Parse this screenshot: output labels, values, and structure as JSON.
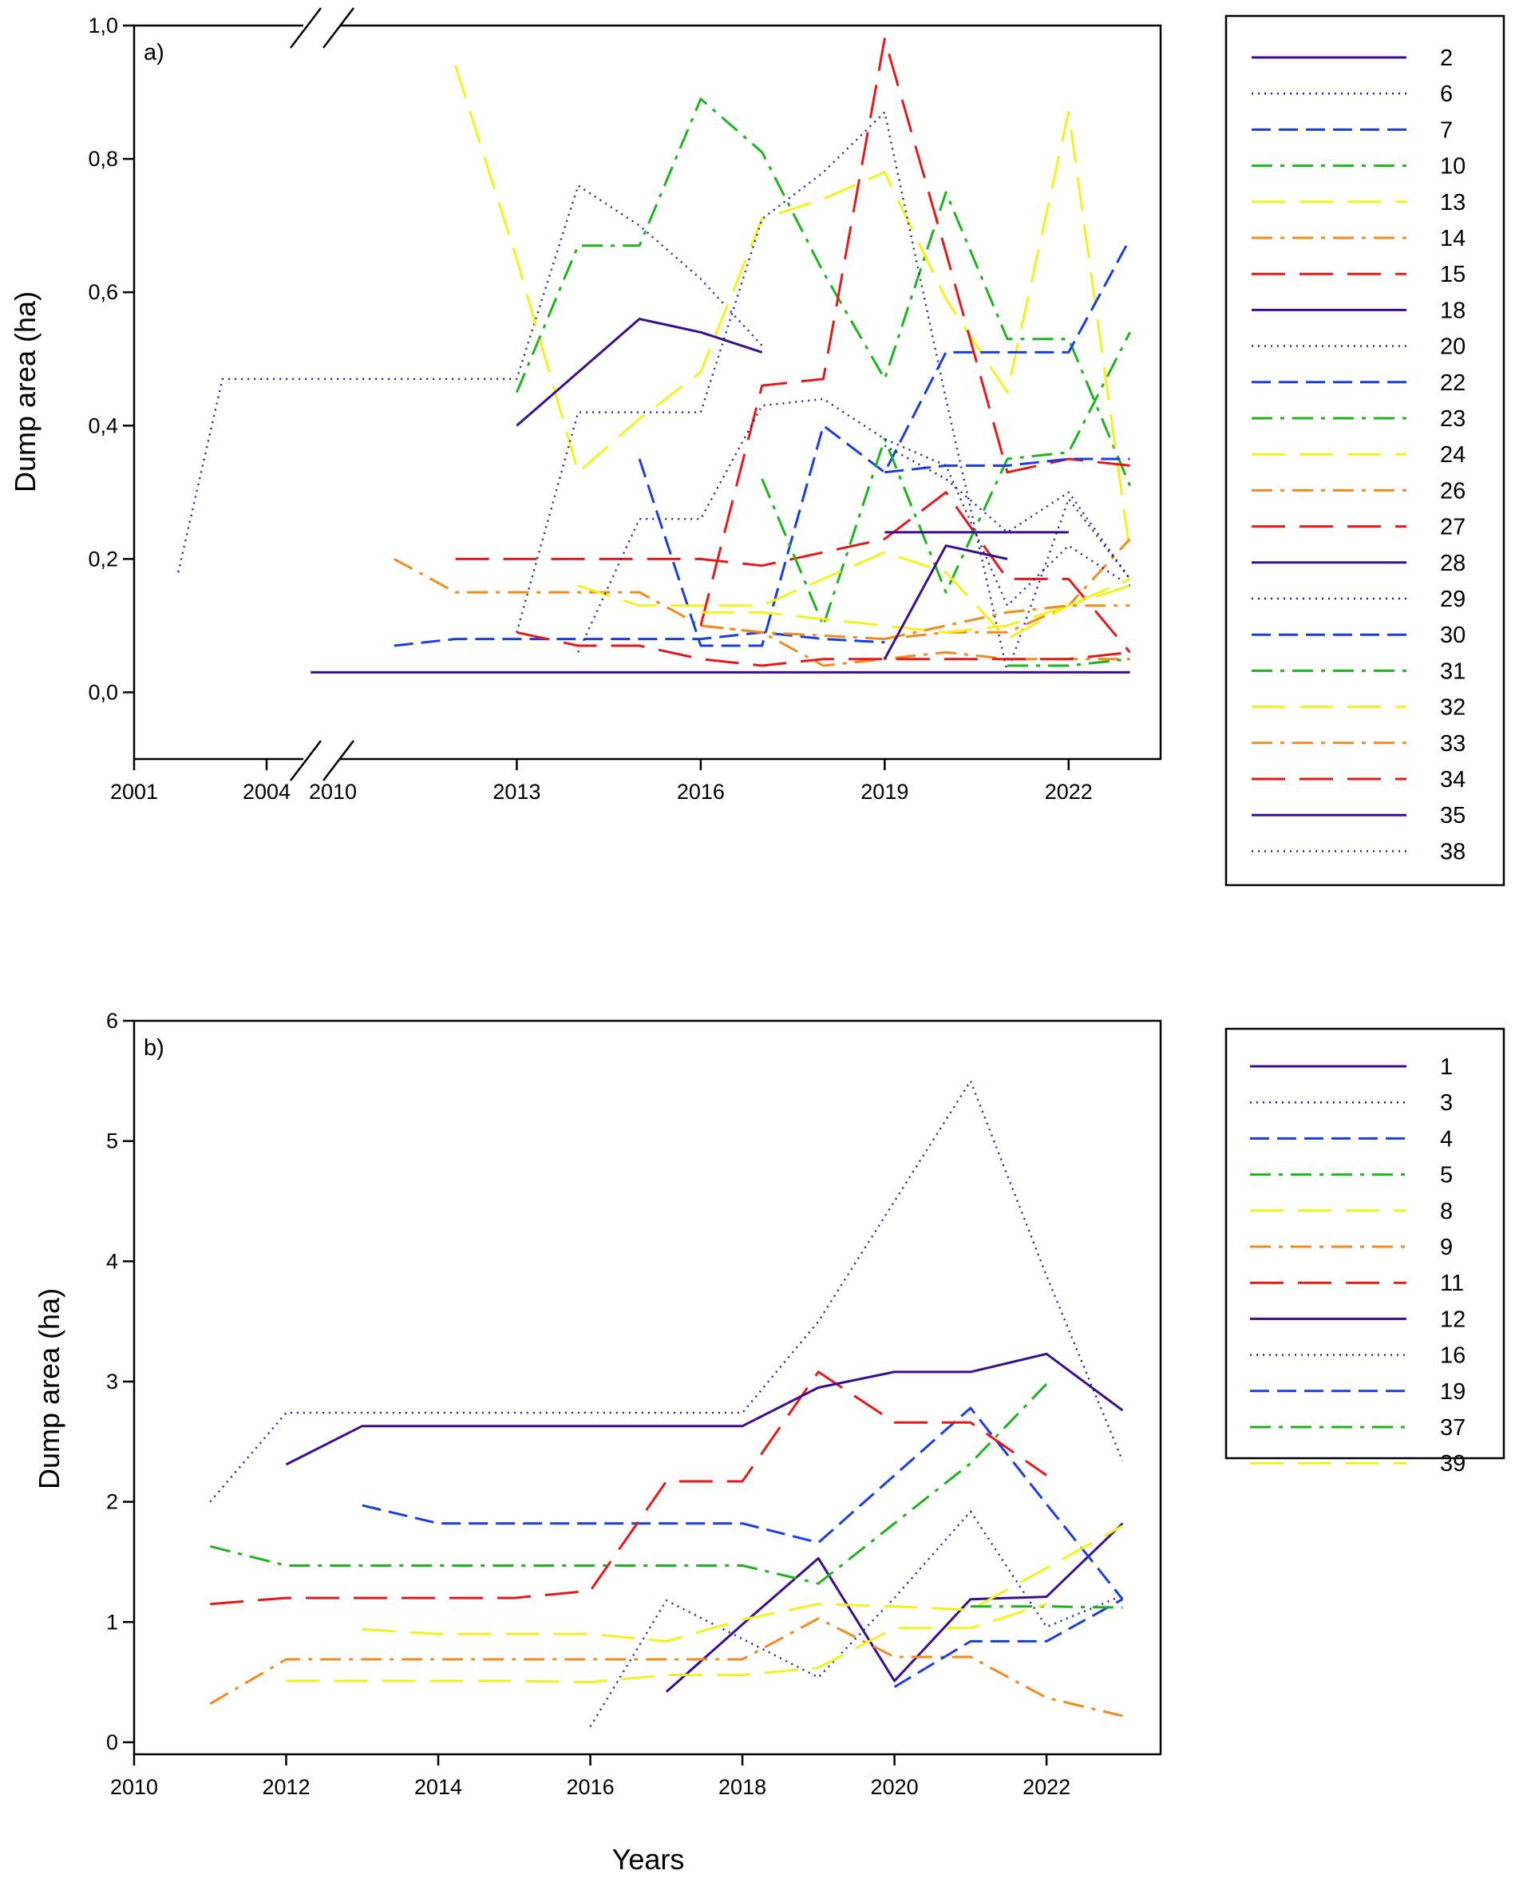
{
  "chart_data": [
    {
      "type": "line",
      "panel_label": "a)",
      "xlabel": "",
      "ylabel": "Dump area (ha)",
      "xlim": [
        2001,
        2023.5
      ],
      "x_axis_break": [
        2005.5,
        2010
      ],
      "xticks": [
        2001,
        2004,
        2010,
        2013,
        2016,
        2019,
        2022
      ],
      "ylim": [
        -0.1,
        1.0
      ],
      "yticks": [
        0.0,
        0.2,
        0.4,
        0.6,
        0.8,
        1.0
      ],
      "ytick_labels": [
        "0,0",
        "0,2",
        "0,4",
        "0,6",
        "0,8",
        "1,0"
      ],
      "legend": "right",
      "series": [
        {
          "name": "2",
          "color": "#3b0f8c",
          "dash": "solid",
          "x": [
            2005,
            2023
          ],
          "y": [
            0.03,
            0.03
          ]
        },
        {
          "name": "6",
          "color": "#1f1f8f",
          "dash": "dot",
          "x": [
            2002,
            2003,
            2004,
            2005,
            2010,
            2011,
            2012,
            2013,
            2014,
            2015,
            2016,
            2017
          ],
          "y": [
            0.18,
            0.47,
            0.47,
            0.47,
            0.47,
            0.47,
            0.47,
            0.47,
            0.76,
            0.7,
            0.62,
            0.52
          ]
        },
        {
          "name": "7",
          "color": "#1a3de0",
          "dash": "dash",
          "x": [
            2011,
            2012,
            2013,
            2014,
            2015,
            2016,
            2017,
            2018,
            2019
          ],
          "y": [
            0.07,
            0.08,
            0.08,
            0.08,
            0.08,
            0.08,
            0.09,
            0.08,
            0.075
          ]
        },
        {
          "name": "10",
          "color": "#1db41d",
          "dash": "dashdot",
          "x": [
            2013,
            2014,
            2015,
            2016,
            2017,
            2018,
            2019,
            2020,
            2021,
            2022,
            2023
          ],
          "y": [
            0.45,
            0.67,
            0.67,
            0.89,
            0.81,
            0.63,
            0.47,
            0.75,
            0.53,
            0.53,
            0.31
          ]
        },
        {
          "name": "13",
          "color": "#f2f21c",
          "dash": "longdash",
          "x": [
            2012,
            2013,
            2014,
            2015,
            2016,
            2017,
            2018,
            2019,
            2020,
            2021,
            2022,
            2023
          ],
          "y": [
            0.94,
            0.65,
            0.33,
            0.41,
            0.48,
            0.71,
            0.74,
            0.78,
            0.59,
            0.45,
            0.87,
            0.21
          ]
        },
        {
          "name": "14",
          "color": "#f28a1c",
          "dash": "dashdot",
          "x": [
            2011,
            2012,
            2013,
            2014,
            2015,
            2016,
            2017,
            2018,
            2019,
            2020,
            2021,
            2022,
            2023
          ],
          "y": [
            0.2,
            0.15,
            0.15,
            0.15,
            0.15,
            0.1,
            0.09,
            0.085,
            0.08,
            0.09,
            0.09,
            0.13,
            0.23
          ]
        },
        {
          "name": "15",
          "color": "#e41a1a",
          "dash": "longdash",
          "x": [
            2012,
            2013,
            2014,
            2015,
            2016,
            2017,
            2018,
            2019,
            2020,
            2021,
            2022,
            2023
          ],
          "y": [
            0.2,
            0.2,
            0.2,
            0.2,
            0.2,
            0.19,
            0.21,
            0.23,
            0.3,
            0.17,
            0.17,
            0.06
          ]
        },
        {
          "name": "18",
          "color": "#3b0f8c",
          "dash": "solid",
          "x": [
            2013,
            2014,
            2015,
            2016,
            2017
          ],
          "y": [
            0.4,
            0.48,
            0.56,
            0.54,
            0.51
          ]
        },
        {
          "name": "20",
          "color": "#1f1f8f",
          "dash": "dot",
          "x": [
            2013,
            2014,
            2015,
            2016,
            2017,
            2018,
            2019,
            2020,
            2021,
            2022,
            2023
          ],
          "y": [
            0.09,
            0.42,
            0.42,
            0.42,
            0.71,
            0.78,
            0.87,
            0.44,
            0.03,
            0.29,
            0.17
          ]
        },
        {
          "name": "22",
          "color": "#1a3de0",
          "dash": "dash",
          "x": [
            2015,
            2016,
            2017,
            2018,
            2019,
            2020,
            2021,
            2022,
            2023
          ],
          "y": [
            0.35,
            0.07,
            0.07,
            0.4,
            0.33,
            0.51,
            0.51,
            0.51,
            0.68
          ]
        },
        {
          "name": "23",
          "color": "#1db41d",
          "dash": "dashdot",
          "x": [
            2017,
            2018,
            2019,
            2020,
            2021,
            2022,
            2023
          ],
          "y": [
            0.32,
            0.1,
            0.38,
            0.15,
            0.35,
            0.36,
            0.54
          ]
        },
        {
          "name": "24",
          "color": "#f2f21c",
          "dash": "longdash",
          "x": [
            2014,
            2015,
            2016,
            2017,
            2018,
            2019,
            2020,
            2021,
            2022,
            2023
          ],
          "y": [
            0.16,
            0.13,
            0.13,
            0.13,
            0.17,
            0.21,
            0.18,
            0.08,
            0.13,
            0.16
          ]
        },
        {
          "name": "26",
          "color": "#f28a1c",
          "dash": "dashdot",
          "x": [
            2016,
            2017,
            2018,
            2019,
            2020,
            2021,
            2022,
            2023
          ],
          "y": [
            0.1,
            0.09,
            0.04,
            0.05,
            0.06,
            0.05,
            0.05,
            0.05
          ]
        },
        {
          "name": "27",
          "color": "#e41a1a",
          "dash": "longdash",
          "x": [
            2016,
            2017,
            2018,
            2019,
            2020,
            2021,
            2022,
            2023
          ],
          "y": [
            0.1,
            0.46,
            0.47,
            0.98,
            0.66,
            0.33,
            0.35,
            0.34
          ]
        },
        {
          "name": "28",
          "color": "#3b0f8c",
          "dash": "solid",
          "x": [
            2019,
            2020,
            2021,
            2022
          ],
          "y": [
            0.24,
            0.24,
            0.24,
            0.24
          ]
        },
        {
          "name": "29",
          "color": "#1f1f8f",
          "dash": "dot",
          "x": [
            2014,
            2015,
            2016,
            2017,
            2018,
            2019,
            2020,
            2021,
            2022,
            2023
          ],
          "y": [
            0.06,
            0.26,
            0.26,
            0.43,
            0.44,
            0.38,
            0.34,
            0.13,
            0.22,
            0.16
          ]
        },
        {
          "name": "30",
          "color": "#1a3de0",
          "dash": "dash",
          "x": [
            2019,
            2020,
            2021,
            2022,
            2023
          ],
          "y": [
            0.33,
            0.34,
            0.34,
            0.35,
            0.35
          ]
        },
        {
          "name": "31",
          "color": "#1db41d",
          "dash": "dashdot",
          "x": [
            2021,
            2022,
            2023
          ],
          "y": [
            0.04,
            0.04,
            0.05
          ]
        },
        {
          "name": "32",
          "color": "#f2f21c",
          "dash": "longdash",
          "x": [
            2016,
            2017,
            2018,
            2019,
            2020,
            2021,
            2022,
            2023
          ],
          "y": [
            0.12,
            0.12,
            0.11,
            0.1,
            0.09,
            0.1,
            0.13,
            0.17
          ]
        },
        {
          "name": "33",
          "color": "#f28a1c",
          "dash": "dashdot",
          "x": [
            2019,
            2020,
            2021,
            2022,
            2023
          ],
          "y": [
            0.08,
            0.1,
            0.12,
            0.13,
            0.13
          ]
        },
        {
          "name": "34",
          "color": "#e41a1a",
          "dash": "longdash",
          "x": [
            2013,
            2014,
            2015,
            2016,
            2017,
            2018,
            2019,
            2020,
            2021,
            2022,
            2023
          ],
          "y": [
            0.09,
            0.07,
            0.07,
            0.05,
            0.04,
            0.05,
            0.05,
            0.05,
            0.05,
            0.05,
            0.06
          ]
        },
        {
          "name": "35",
          "color": "#3b0f8c",
          "dash": "solid",
          "x": [
            2019,
            2020,
            2021
          ],
          "y": [
            0.05,
            0.22,
            0.2
          ]
        },
        {
          "name": "38",
          "color": "#1f1f8f",
          "dash": "dot",
          "x": [
            2019,
            2020,
            2021,
            2022,
            2023
          ],
          "y": [
            0.37,
            0.32,
            0.24,
            0.3,
            0.17
          ]
        }
      ]
    },
    {
      "type": "line",
      "panel_label": "b)",
      "xlabel": "Years",
      "ylabel": "Dump area (ha)",
      "xlim": [
        2010,
        2023.5
      ],
      "xticks": [
        2010,
        2012,
        2014,
        2016,
        2018,
        2020,
        2022
      ],
      "ylim": [
        -0.1,
        6
      ],
      "yticks": [
        0,
        1,
        2,
        3,
        4,
        5,
        6
      ],
      "ytick_labels": [
        "0",
        "1",
        "2",
        "3",
        "4",
        "5",
        "6"
      ],
      "legend": "right",
      "series": [
        {
          "name": "1",
          "color": "#3b0f8c",
          "dash": "solid",
          "x": [
            2017,
            2018,
            2019,
            2020,
            2021,
            2022,
            2023
          ],
          "y": [
            0.42,
            0.98,
            1.53,
            0.51,
            1.19,
            1.21,
            1.82
          ]
        },
        {
          "name": "3",
          "color": "#1f1f8f",
          "dash": "dot",
          "x": [
            2016,
            2017,
            2018,
            2019,
            2020,
            2021,
            2022,
            2023
          ],
          "y": [
            0.13,
            1.18,
            0.86,
            0.54,
            1.2,
            1.92,
            0.96,
            1.22
          ]
        },
        {
          "name": "4",
          "color": "#1a3de0",
          "dash": "dash",
          "x": [
            2013,
            2014,
            2015,
            2016,
            2017,
            2018,
            2019,
            2020,
            2021,
            2022,
            2023
          ],
          "y": [
            1.97,
            1.82,
            1.82,
            1.82,
            1.82,
            1.82,
            1.66,
            2.22,
            2.78,
            1.98,
            1.19
          ]
        },
        {
          "name": "5",
          "color": "#1db41d",
          "dash": "dashdot",
          "x": [
            2011,
            2012,
            2013,
            2014,
            2015,
            2016,
            2017,
            2018,
            2019,
            2020,
            2021,
            2022
          ],
          "y": [
            1.63,
            1.47,
            1.47,
            1.47,
            1.47,
            1.47,
            1.47,
            1.47,
            1.32,
            1.82,
            2.32,
            2.98
          ]
        },
        {
          "name": "8",
          "color": "#f2f21c",
          "dash": "longdash",
          "x": [
            2013,
            2014,
            2015,
            2016,
            2017,
            2018,
            2019,
            2020,
            2021,
            2022,
            2023
          ],
          "y": [
            0.94,
            0.9,
            0.9,
            0.9,
            0.84,
            1.02,
            1.15,
            1.13,
            1.1,
            1.45,
            1.8
          ]
        },
        {
          "name": "9",
          "color": "#f28a1c",
          "dash": "dashdot",
          "x": [
            2011,
            2012,
            2013,
            2014,
            2015,
            2016,
            2017,
            2018,
            2019,
            2020,
            2021,
            2022,
            2023
          ],
          "y": [
            0.32,
            0.69,
            0.69,
            0.69,
            0.69,
            0.69,
            0.69,
            0.69,
            1.03,
            0.71,
            0.71,
            0.37,
            0.22
          ]
        },
        {
          "name": "11",
          "color": "#e41a1a",
          "dash": "longdash",
          "x": [
            2011,
            2012,
            2013,
            2014,
            2015,
            2016,
            2017,
            2018,
            2019,
            2020,
            2021,
            2022
          ],
          "y": [
            1.15,
            1.2,
            1.2,
            1.2,
            1.2,
            1.26,
            2.17,
            2.17,
            3.08,
            2.66,
            2.66,
            2.22
          ]
        },
        {
          "name": "12",
          "color": "#3b0f8c",
          "dash": "solid",
          "x": [
            2012,
            2013,
            2014,
            2015,
            2016,
            2017,
            2018,
            2019,
            2020,
            2021,
            2022,
            2023
          ],
          "y": [
            2.31,
            2.63,
            2.63,
            2.63,
            2.63,
            2.63,
            2.63,
            2.95,
            3.08,
            3.08,
            3.23,
            2.76
          ]
        },
        {
          "name": "16",
          "color": "#1f1f8f",
          "dash": "dot",
          "x": [
            2011,
            2012,
            2013,
            2014,
            2015,
            2016,
            2017,
            2018,
            2019,
            2020,
            2021,
            2022,
            2023
          ],
          "y": [
            2.0,
            2.74,
            2.74,
            2.74,
            2.74,
            2.74,
            2.74,
            2.74,
            3.5,
            4.5,
            5.5,
            3.88,
            2.34
          ]
        },
        {
          "name": "19",
          "color": "#1a3de0",
          "dash": "dash",
          "x": [
            2020,
            2021,
            2022,
            2023
          ],
          "y": [
            0.46,
            0.84,
            0.84,
            1.19
          ]
        },
        {
          "name": "37",
          "color": "#1db41d",
          "dash": "dashdot",
          "x": [
            2021,
            2022,
            2023
          ],
          "y": [
            1.13,
            1.13,
            1.12
          ]
        },
        {
          "name": "39",
          "color": "#f2f21c",
          "dash": "longdash",
          "x": [
            2012,
            2013,
            2014,
            2015,
            2016,
            2017,
            2018,
            2019,
            2020,
            2021,
            2022
          ],
          "y": [
            0.51,
            0.51,
            0.51,
            0.51,
            0.5,
            0.56,
            0.56,
            0.62,
            0.95,
            0.95,
            1.15
          ]
        }
      ]
    }
  ]
}
